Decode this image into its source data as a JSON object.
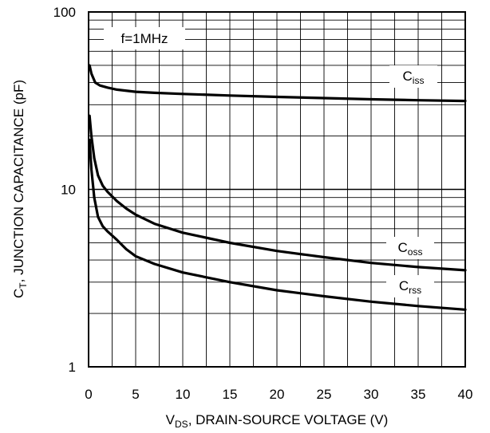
{
  "chart_data": {
    "type": "line",
    "xlabel": {
      "main": "V",
      "sub": "DS",
      "rest": ", DRAIN-SOURCE VOLTAGE (V)"
    },
    "ylabel": {
      "main": "C",
      "sub": "T",
      "rest": ", JUNCTION CAPACITANCE (pF)"
    },
    "xlim": [
      0,
      40
    ],
    "ylim": [
      1,
      100
    ],
    "yscale": "log",
    "grid": true,
    "annotation": "f=1MHz",
    "x_ticks": [
      "0",
      "5",
      "10",
      "15",
      "20",
      "25",
      "30",
      "35",
      "40"
    ],
    "y_ticks": [
      "1",
      "10",
      "100"
    ],
    "series": [
      {
        "name": "Ciss",
        "name_main": "C",
        "name_sub": "iss",
        "points": [
          [
            0.1,
            50
          ],
          [
            0.3,
            45
          ],
          [
            0.7,
            40
          ],
          [
            1.2,
            38.5
          ],
          [
            2,
            37.5
          ],
          [
            3,
            36.5
          ],
          [
            5,
            35.5
          ],
          [
            7,
            35
          ],
          [
            10,
            34.5
          ],
          [
            15,
            33.8
          ],
          [
            20,
            33.2
          ],
          [
            25,
            32.7
          ],
          [
            30,
            32.2
          ],
          [
            35,
            31.8
          ],
          [
            40,
            31.5
          ]
        ]
      },
      {
        "name": "Coss",
        "name_main": "C",
        "name_sub": "oss",
        "points": [
          [
            0.1,
            26
          ],
          [
            0.3,
            20
          ],
          [
            0.6,
            15
          ],
          [
            1,
            12
          ],
          [
            1.5,
            10.5
          ],
          [
            2,
            9.7
          ],
          [
            3,
            8.6
          ],
          [
            4,
            7.8
          ],
          [
            5,
            7.2
          ],
          [
            7,
            6.4
          ],
          [
            10,
            5.7
          ],
          [
            15,
            5.0
          ],
          [
            20,
            4.5
          ],
          [
            25,
            4.15
          ],
          [
            30,
            3.85
          ],
          [
            35,
            3.65
          ],
          [
            40,
            3.5
          ]
        ]
      },
      {
        "name": "Crss",
        "name_main": "C",
        "name_sub": "rss",
        "points": [
          [
            0.1,
            19
          ],
          [
            0.3,
            13
          ],
          [
            0.6,
            9
          ],
          [
            1,
            7
          ],
          [
            1.5,
            6.2
          ],
          [
            2,
            5.8
          ],
          [
            3,
            5.2
          ],
          [
            4,
            4.6
          ],
          [
            5,
            4.2
          ],
          [
            7,
            3.8
          ],
          [
            10,
            3.4
          ],
          [
            15,
            3.0
          ],
          [
            20,
            2.7
          ],
          [
            25,
            2.5
          ],
          [
            30,
            2.33
          ],
          [
            35,
            2.2
          ],
          [
            40,
            2.1
          ]
        ]
      }
    ]
  }
}
